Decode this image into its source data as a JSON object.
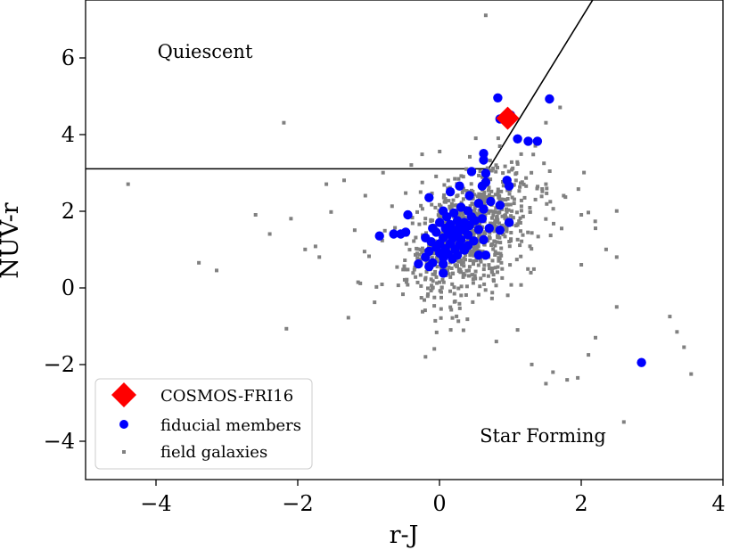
{
  "chart_data": {
    "type": "scatter",
    "xlabel": "r-J",
    "ylabel": "NUV-r",
    "xlim": [
      -5,
      4
    ],
    "ylim": [
      -5,
      7.5
    ],
    "xticks": [
      {
        "value": -4,
        "label": "−4"
      },
      {
        "value": -2,
        "label": "−2"
      },
      {
        "value": 0,
        "label": "0"
      },
      {
        "value": 2,
        "label": "2"
      },
      {
        "value": 4,
        "label": "4"
      }
    ],
    "yticks": [
      {
        "value": -4,
        "label": "−4"
      },
      {
        "value": -2,
        "label": "−2"
      },
      {
        "value": 0,
        "label": "0"
      },
      {
        "value": 2,
        "label": "2"
      },
      {
        "value": 4,
        "label": "4"
      },
      {
        "value": 6,
        "label": "6"
      }
    ],
    "grid": false,
    "legend_position": "lower-left",
    "annotations": [
      {
        "text": "Quiescent",
        "x": -4.0,
        "y": 6.0
      },
      {
        "text": "Star Forming",
        "x": 0.5,
        "y": -3.8
      }
    ],
    "boundary_lines": [
      {
        "x": [
          -5,
          0.69
        ],
        "y": [
          3.1,
          3.1
        ]
      },
      {
        "x": [
          0.69,
          2.16
        ],
        "y": [
          3.1,
          7.5
        ]
      }
    ],
    "series": [
      {
        "name": "COSMOS-FRI16",
        "marker": "diamond",
        "color": "#ff0000",
        "points": [
          [
            0.96,
            4.42
          ]
        ]
      },
      {
        "name": "fiducial members",
        "marker": "circle",
        "color": "#0000ff",
        "points": [
          [
            1.55,
            4.92
          ],
          [
            0.82,
            4.95
          ],
          [
            0.85,
            4.4
          ],
          [
            1.0,
            4.5
          ],
          [
            1.1,
            3.88
          ],
          [
            1.25,
            3.82
          ],
          [
            1.38,
            3.82
          ],
          [
            0.62,
            3.5
          ],
          [
            0.62,
            3.33
          ],
          [
            0.45,
            3.03
          ],
          [
            0.65,
            2.98
          ],
          [
            0.95,
            2.8
          ],
          [
            0.98,
            2.65
          ],
          [
            0.65,
            2.75
          ],
          [
            0.6,
            2.65
          ],
          [
            0.28,
            2.65
          ],
          [
            0.15,
            2.5
          ],
          [
            0.42,
            2.4
          ],
          [
            -0.15,
            2.35
          ],
          [
            0.72,
            2.25
          ],
          [
            0.55,
            2.2
          ],
          [
            0.85,
            2.15
          ],
          [
            0.3,
            2.1
          ],
          [
            0.4,
            2.0
          ],
          [
            0.62,
            2.05
          ],
          [
            0.05,
            2.0
          ],
          [
            0.2,
            1.95
          ],
          [
            -0.45,
            1.9
          ],
          [
            0.1,
            1.85
          ],
          [
            0.45,
            1.85
          ],
          [
            0.6,
            1.8
          ],
          [
            0.25,
            1.75
          ],
          [
            0.35,
            1.7
          ],
          [
            0.5,
            1.75
          ],
          [
            0.98,
            1.7
          ],
          [
            0.0,
            1.7
          ],
          [
            0.15,
            1.65
          ],
          [
            0.28,
            1.6
          ],
          [
            0.42,
            1.62
          ],
          [
            -0.1,
            1.55
          ],
          [
            0.08,
            1.55
          ],
          [
            0.2,
            1.5
          ],
          [
            0.35,
            1.5
          ],
          [
            0.55,
            1.52
          ],
          [
            0.85,
            1.5
          ],
          [
            0.7,
            1.55
          ],
          [
            -0.05,
            1.45
          ],
          [
            0.12,
            1.42
          ],
          [
            0.25,
            1.4
          ],
          [
            0.4,
            1.38
          ],
          [
            -0.48,
            1.45
          ],
          [
            -0.55,
            1.4
          ],
          [
            -0.65,
            1.4
          ],
          [
            -0.85,
            1.35
          ],
          [
            -0.2,
            1.3
          ],
          [
            0.05,
            1.3
          ],
          [
            0.18,
            1.28
          ],
          [
            0.3,
            1.25
          ],
          [
            0.48,
            1.22
          ],
          [
            0.62,
            1.25
          ],
          [
            -0.12,
            1.2
          ],
          [
            0.0,
            1.15
          ],
          [
            0.15,
            1.15
          ],
          [
            0.28,
            1.12
          ],
          [
            0.4,
            1.1
          ],
          [
            -0.05,
            1.05
          ],
          [
            0.08,
            1.02
          ],
          [
            0.22,
            1.0
          ],
          [
            0.35,
            0.98
          ],
          [
            -0.15,
            0.95
          ],
          [
            0.0,
            0.9
          ],
          [
            0.12,
            0.88
          ],
          [
            0.25,
            0.85
          ],
          [
            0.55,
            0.85
          ],
          [
            0.65,
            0.85
          ],
          [
            -0.2,
            0.8
          ],
          [
            0.05,
            0.78
          ],
          [
            0.18,
            0.75
          ],
          [
            -0.1,
            0.65
          ],
          [
            0.05,
            0.62
          ],
          [
            -0.3,
            0.62
          ],
          [
            -0.15,
            0.55
          ],
          [
            0.05,
            0.38
          ],
          [
            2.85,
            -1.95
          ]
        ]
      },
      {
        "name": "field galaxies",
        "marker": "square",
        "color": "#808080",
        "generated": true,
        "count": 900,
        "center": [
          0.4,
          1.4
        ],
        "spread": [
          0.42,
          0.85
        ],
        "correlation": 0.45,
        "outliers": [
          [
            0.65,
            7.1
          ],
          [
            -2.2,
            4.3
          ],
          [
            -4.4,
            2.7
          ],
          [
            -3.4,
            0.65
          ],
          [
            -3.15,
            0.45
          ],
          [
            -2.6,
            1.9
          ],
          [
            -2.4,
            1.4
          ],
          [
            -2.1,
            1.8
          ],
          [
            -1.9,
            1.0
          ],
          [
            -1.7,
            0.8
          ],
          [
            -1.6,
            2.7
          ],
          [
            -1.35,
            2.8
          ],
          [
            -1.2,
            1.5
          ],
          [
            -1.05,
            2.4
          ],
          [
            2.0,
            1.9
          ],
          [
            2.2,
            1.55
          ],
          [
            2.35,
            1.0
          ],
          [
            2.5,
            0.8
          ],
          [
            2.0,
            0.6
          ],
          [
            2.5,
            -0.5
          ],
          [
            3.25,
            -0.75
          ],
          [
            3.35,
            -1.15
          ],
          [
            3.45,
            -1.55
          ],
          [
            3.55,
            -2.25
          ],
          [
            2.2,
            -1.3
          ],
          [
            2.1,
            -1.75
          ],
          [
            1.95,
            -2.35
          ],
          [
            1.8,
            -2.4
          ],
          [
            1.6,
            -2.2
          ],
          [
            1.5,
            -2.5
          ],
          [
            2.6,
            -3.5
          ],
          [
            1.3,
            -2.0
          ],
          [
            1.1,
            -1.1
          ],
          [
            0.8,
            -1.4
          ],
          [
            -0.2,
            -1.8
          ],
          [
            1.7,
            4.7
          ],
          [
            1.5,
            4.3
          ],
          [
            1.35,
            3.7
          ],
          [
            0.0,
            3.55
          ],
          [
            -0.8,
            3.0
          ],
          [
            -0.4,
            3.2
          ],
          [
            1.75,
            2.4
          ],
          [
            1.5,
            2.7
          ],
          [
            2.5,
            2.0
          ]
        ]
      }
    ]
  }
}
